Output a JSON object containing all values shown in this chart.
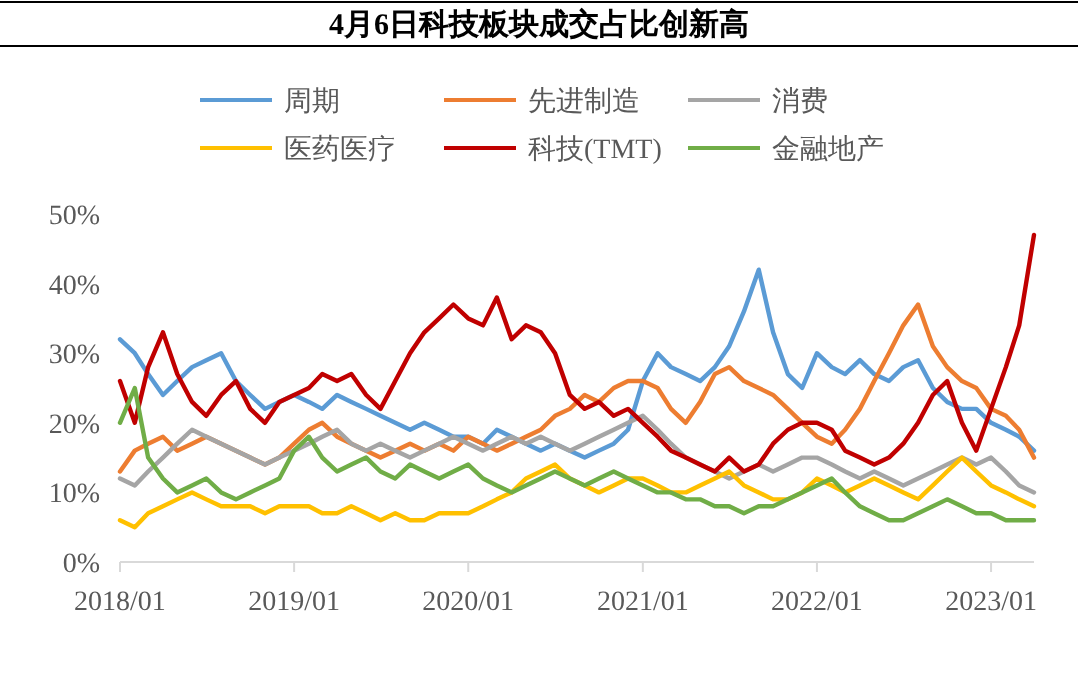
{
  "chart_data": {
    "type": "line",
    "title": "4月6日科技板块成交占比创新高",
    "x": [
      "2018-01",
      "2018-02",
      "2018-03",
      "2018-04",
      "2018-05",
      "2018-06",
      "2018-07",
      "2018-08",
      "2018-09",
      "2018-10",
      "2018-11",
      "2018-12",
      "2019-01",
      "2019-02",
      "2019-03",
      "2019-04",
      "2019-05",
      "2019-06",
      "2019-07",
      "2019-08",
      "2019-09",
      "2019-10",
      "2019-11",
      "2019-12",
      "2020-01",
      "2020-02",
      "2020-03",
      "2020-04",
      "2020-05",
      "2020-06",
      "2020-07",
      "2020-08",
      "2020-09",
      "2020-10",
      "2020-11",
      "2020-12",
      "2021-01",
      "2021-02",
      "2021-03",
      "2021-04",
      "2021-05",
      "2021-06",
      "2021-07",
      "2021-08",
      "2021-09",
      "2021-10",
      "2021-11",
      "2021-12",
      "2022-01",
      "2022-02",
      "2022-03",
      "2022-04",
      "2022-05",
      "2022-06",
      "2022-07",
      "2022-08",
      "2022-09",
      "2022-10",
      "2022-11",
      "2022-12",
      "2023-01",
      "2023-02",
      "2023-03",
      "2023-04"
    ],
    "series": [
      {
        "name": "周期",
        "color": "#5b9bd5",
        "values": [
          32,
          30,
          27,
          24,
          26,
          28,
          29,
          30,
          26,
          24,
          22,
          23,
          24,
          23,
          22,
          24,
          23,
          22,
          21,
          20,
          19,
          20,
          19,
          18,
          18,
          17,
          19,
          18,
          17,
          16,
          17,
          16,
          15,
          16,
          17,
          19,
          26,
          30,
          28,
          27,
          26,
          28,
          31,
          36,
          42,
          33,
          27,
          25,
          30,
          28,
          27,
          29,
          27,
          26,
          28,
          29,
          25,
          23,
          22,
          22,
          20,
          19,
          18,
          16
        ]
      },
      {
        "name": "先进制造",
        "color": "#ed7d31",
        "values": [
          13,
          16,
          17,
          18,
          16,
          17,
          18,
          17,
          16,
          15,
          14,
          15,
          17,
          19,
          20,
          18,
          17,
          16,
          15,
          16,
          17,
          16,
          17,
          16,
          18,
          17,
          16,
          17,
          18,
          19,
          21,
          22,
          24,
          23,
          25,
          26,
          26,
          25,
          22,
          20,
          23,
          27,
          28,
          26,
          25,
          24,
          22,
          20,
          18,
          17,
          19,
          22,
          26,
          30,
          34,
          37,
          31,
          28,
          26,
          25,
          22,
          21,
          19,
          15
        ]
      },
      {
        "name": "消费",
        "color": "#a5a5a5",
        "values": [
          12,
          11,
          13,
          15,
          17,
          19,
          18,
          17,
          16,
          15,
          14,
          15,
          16,
          17,
          18,
          19,
          17,
          16,
          17,
          16,
          15,
          16,
          17,
          18,
          17,
          16,
          17,
          18,
          17,
          18,
          17,
          16,
          17,
          18,
          19,
          20,
          21,
          19,
          17,
          15,
          14,
          13,
          12,
          13,
          14,
          13,
          14,
          15,
          15,
          14,
          13,
          12,
          13,
          12,
          11,
          12,
          13,
          14,
          15,
          14,
          15,
          13,
          11,
          10
        ]
      },
      {
        "name": "医药医疗",
        "color": "#ffc000",
        "values": [
          6,
          5,
          7,
          8,
          9,
          10,
          9,
          8,
          8,
          8,
          7,
          8,
          8,
          8,
          7,
          7,
          8,
          7,
          6,
          7,
          6,
          6,
          7,
          7,
          7,
          8,
          9,
          10,
          12,
          13,
          14,
          12,
          11,
          10,
          11,
          12,
          12,
          11,
          10,
          10,
          11,
          12,
          13,
          11,
          10,
          9,
          9,
          10,
          12,
          11,
          10,
          11,
          12,
          11,
          10,
          9,
          11,
          13,
          15,
          13,
          11,
          10,
          9,
          8
        ]
      },
      {
        "name": "科技(TMT)",
        "color": "#c00000",
        "values": [
          26,
          20,
          28,
          33,
          27,
          23,
          21,
          24,
          26,
          22,
          20,
          23,
          24,
          25,
          27,
          26,
          27,
          24,
          22,
          26,
          30,
          33,
          35,
          37,
          35,
          34,
          38,
          32,
          34,
          33,
          30,
          24,
          22,
          23,
          21,
          22,
          20,
          18,
          16,
          15,
          14,
          13,
          15,
          13,
          14,
          17,
          19,
          20,
          20,
          19,
          16,
          15,
          14,
          15,
          17,
          20,
          24,
          26,
          20,
          16,
          22,
          28,
          34,
          47
        ]
      },
      {
        "name": "金融地产",
        "color": "#70ad47",
        "values": [
          20,
          25,
          15,
          12,
          10,
          11,
          12,
          10,
          9,
          10,
          11,
          12,
          16,
          18,
          15,
          13,
          14,
          15,
          13,
          12,
          14,
          13,
          12,
          13,
          14,
          12,
          11,
          10,
          11,
          12,
          13,
          12,
          11,
          12,
          13,
          12,
          11,
          10,
          10,
          9,
          9,
          8,
          8,
          7,
          8,
          8,
          9,
          10,
          11,
          12,
          10,
          8,
          7,
          6,
          6,
          7,
          8,
          9,
          8,
          7,
          7,
          6,
          6,
          6
        ]
      }
    ],
    "xlim": [
      "2018-01",
      "2023-04"
    ],
    "xticks": [
      {
        "value": "2018-01",
        "label": "2018/01"
      },
      {
        "value": "2019-01",
        "label": "2019/01"
      },
      {
        "value": "2020-01",
        "label": "2020/01"
      },
      {
        "value": "2021-01",
        "label": "2021/01"
      },
      {
        "value": "2022-01",
        "label": "2022/01"
      },
      {
        "value": "2023-01",
        "label": "2023/01"
      }
    ],
    "ylim": [
      0,
      50
    ],
    "yticks": [
      {
        "value": 0,
        "label": "0%"
      },
      {
        "value": 10,
        "label": "10%"
      },
      {
        "value": 20,
        "label": "20%"
      },
      {
        "value": 30,
        "label": "30%"
      },
      {
        "value": 40,
        "label": "40%"
      },
      {
        "value": 50,
        "label": "50%"
      }
    ],
    "legend": "top"
  }
}
